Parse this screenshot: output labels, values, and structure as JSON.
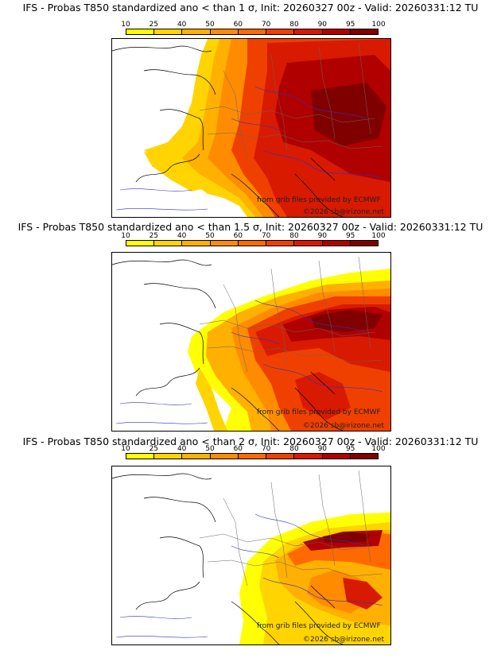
{
  "legend": {
    "ticks": [
      "10",
      "25",
      "40",
      "50",
      "60",
      "70",
      "80",
      "90",
      "95",
      "100"
    ],
    "colors": [
      "#ffff00",
      "#ffd400",
      "#ffb000",
      "#ff8c00",
      "#ff6a00",
      "#f04000",
      "#d81a00",
      "#b00000",
      "#800000"
    ]
  },
  "panels": [
    {
      "title": "IFS - Probas T850  standardized ano < than 1 σ, Init: 20260327 00z - Valid: 20260331:12 TU",
      "credit_grib": "from grib files provided by ECMWF",
      "credit_site": "©2026 sb@irizone.net"
    },
    {
      "title": "IFS - Probas T850  standardized ano < than 1.5 σ, Init: 20260327 00z - Valid: 20260331:12 TU",
      "credit_grib": "from grib files provided by ECMWF",
      "credit_site": "©2026 sb@irizone.net"
    },
    {
      "title": "IFS - Probas T850  standardized ano < than 2 σ, Init: 20260327 00z - Valid: 20260331:12 TU",
      "credit_grib": "from grib files provided by ECMWF",
      "credit_site": "©2026 sb@irizone.net"
    }
  ]
}
